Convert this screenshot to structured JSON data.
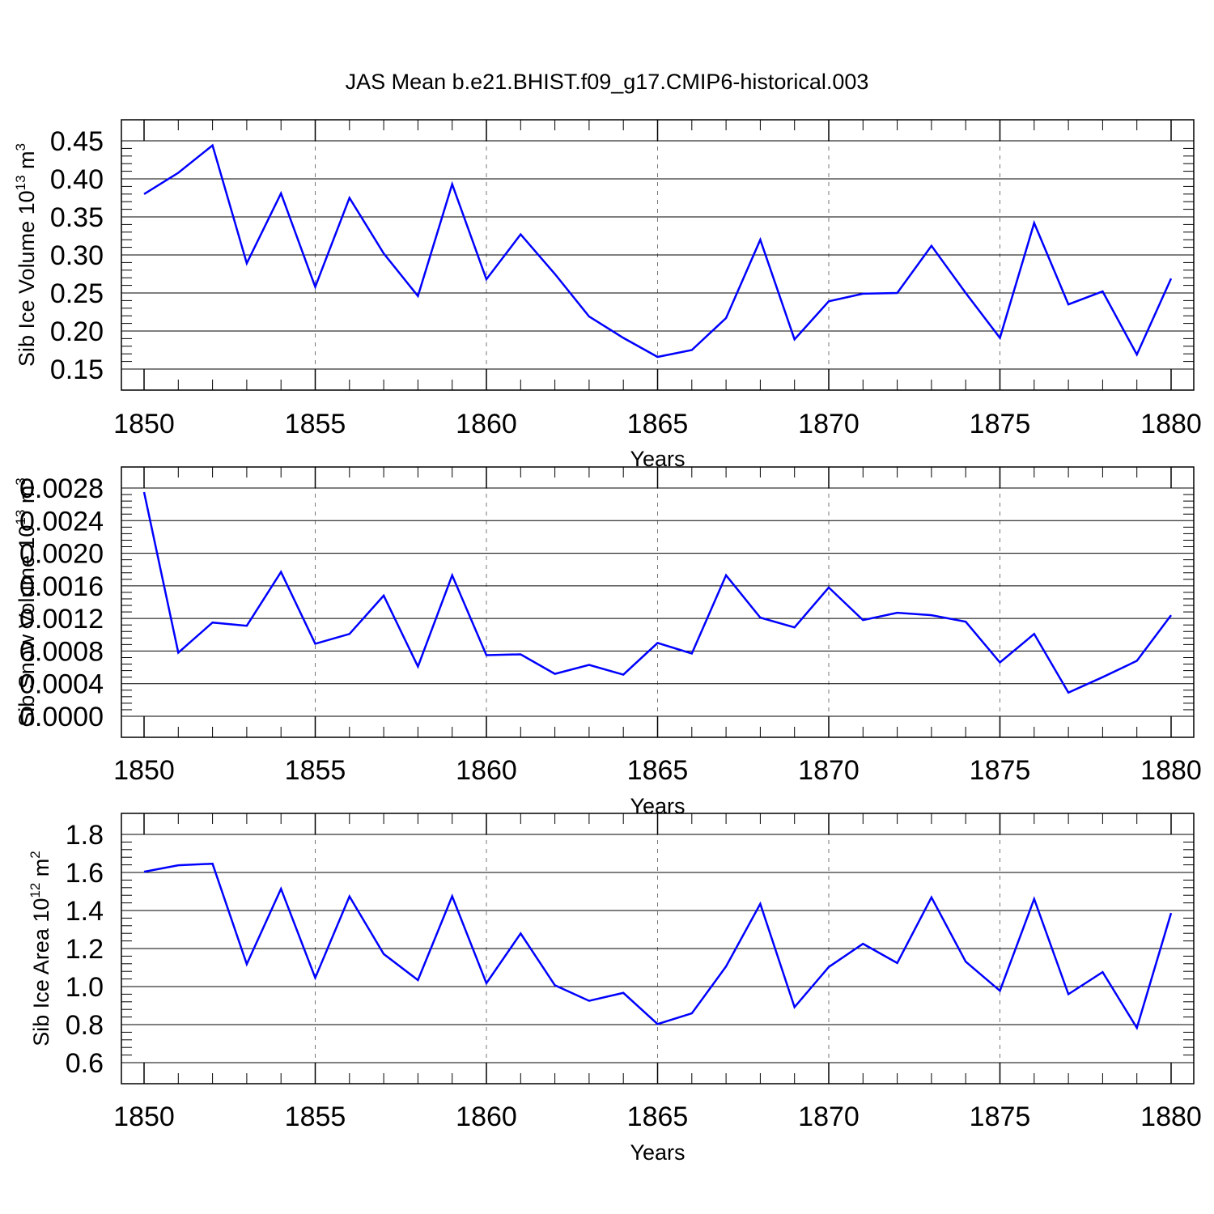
{
  "title": "JAS Mean b.e21.BHIST.f09_g17.CMIP6-historical.003",
  "colors": {
    "line": "#0000ff",
    "axes": "#000000",
    "grid": "#777777"
  },
  "chart_data": [
    {
      "type": "line",
      "ylabel": {
        "text": "Sib Ice Volume 10",
        "exp": "13",
        "unit": " m",
        "unit_exp": "3"
      },
      "xlabel": "Years",
      "xlim": [
        1850,
        1880
      ],
      "ylim": [
        0.15,
        0.45
      ],
      "yticks": [
        "0.15",
        "0.20",
        "0.25",
        "0.30",
        "0.35",
        "0.40",
        "0.45"
      ],
      "xticks": [
        "1850",
        "1855",
        "1860",
        "1865",
        "1870",
        "1875",
        "1880"
      ],
      "grid": "vertical dashed at major x ticks",
      "series": [
        {
          "x": [
            1850,
            1851,
            1852,
            1853,
            1854,
            1855,
            1856,
            1857,
            1858,
            1859,
            1860,
            1861,
            1862,
            1863,
            1864,
            1865,
            1866,
            1867,
            1868,
            1869,
            1870,
            1871,
            1872,
            1873,
            1874,
            1875,
            1876,
            1877,
            1878,
            1879,
            1880
          ],
          "values": [
            0.38,
            0.408,
            0.444,
            0.289,
            0.381,
            0.258,
            0.375,
            0.302,
            0.246,
            0.393,
            0.268,
            0.327,
            0.275,
            0.219,
            0.191,
            0.166,
            0.175,
            0.217,
            0.32,
            0.189,
            0.239,
            0.249,
            0.25,
            0.312,
            0.25,
            0.191,
            0.342,
            0.235,
            0.252,
            0.169,
            0.269
          ]
        }
      ]
    },
    {
      "type": "line",
      "ylabel": {
        "text": "Sib Snow Volume 10",
        "exp": "13",
        "unit": " m",
        "unit_exp": "3"
      },
      "xlabel": "Years",
      "xlim": [
        1850,
        1880
      ],
      "ylim": [
        0.0,
        0.0028
      ],
      "yticks": [
        "0.0000",
        "0.0004",
        "0.0008",
        "0.0012",
        "0.0016",
        "0.0020",
        "0.0024",
        "0.0028"
      ],
      "xticks": [
        "1850",
        "1855",
        "1860",
        "1865",
        "1870",
        "1875",
        "1880"
      ],
      "grid": "vertical dashed at major x ticks",
      "series": [
        {
          "x": [
            1850,
            1851,
            1852,
            1853,
            1854,
            1855,
            1856,
            1857,
            1858,
            1859,
            1860,
            1861,
            1862,
            1863,
            1864,
            1865,
            1866,
            1867,
            1868,
            1869,
            1870,
            1871,
            1872,
            1873,
            1874,
            1875,
            1876,
            1877,
            1878,
            1879,
            1880
          ],
          "values": [
            0.00275,
            0.00078,
            0.00115,
            0.00111,
            0.00177,
            0.00089,
            0.00101,
            0.00148,
            0.00061,
            0.00173,
            0.00075,
            0.00076,
            0.00052,
            0.00063,
            0.00051,
            0.0009,
            0.00077,
            0.00173,
            0.00121,
            0.00109,
            0.00158,
            0.00118,
            0.00127,
            0.00124,
            0.00116,
            0.00066,
            0.00101,
            0.00029,
            0.00048,
            0.00068,
            0.00124
          ]
        }
      ]
    },
    {
      "type": "line",
      "ylabel": {
        "text": "Sib Ice Area 10",
        "exp": "12",
        "unit": " m",
        "unit_exp": "2"
      },
      "xlabel": "Years",
      "xlim": [
        1850,
        1880
      ],
      "ylim": [
        0.6,
        1.8
      ],
      "yticks": [
        "0.6",
        "0.8",
        "1.0",
        "1.2",
        "1.4",
        "1.6",
        "1.8"
      ],
      "xticks": [
        "1850",
        "1855",
        "1860",
        "1865",
        "1870",
        "1875",
        "1880"
      ],
      "grid": "vertical dashed at major x ticks",
      "series": [
        {
          "x": [
            1850,
            1851,
            1852,
            1853,
            1854,
            1855,
            1856,
            1857,
            1858,
            1859,
            1860,
            1861,
            1862,
            1863,
            1864,
            1865,
            1866,
            1867,
            1868,
            1869,
            1870,
            1871,
            1872,
            1873,
            1874,
            1875,
            1876,
            1877,
            1878,
            1879,
            1880
          ],
          "values": [
            1.604,
            1.638,
            1.646,
            1.118,
            1.514,
            1.046,
            1.474,
            1.171,
            1.034,
            1.475,
            1.018,
            1.279,
            1.007,
            0.925,
            0.967,
            0.803,
            0.859,
            1.106,
            1.435,
            0.892,
            1.103,
            1.225,
            1.124,
            1.469,
            1.131,
            0.978,
            1.461,
            0.96,
            1.076,
            0.783,
            1.387
          ]
        }
      ]
    }
  ]
}
